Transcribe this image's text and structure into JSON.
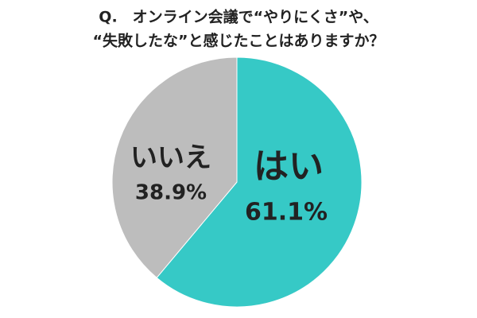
{
  "chart_data": {
    "type": "pie",
    "title": [
      "Q.　オンライン会議で“やりにくさ”や、",
      "“失敗したな”と感じたことはありますか？"
    ],
    "categories": [
      "はい",
      "いいえ"
    ],
    "values": [
      61.1,
      38.9
    ],
    "value_labels": [
      "61.1%",
      "38.9%"
    ],
    "colors": [
      "#36c9c6",
      "#bdbdbd"
    ]
  }
}
